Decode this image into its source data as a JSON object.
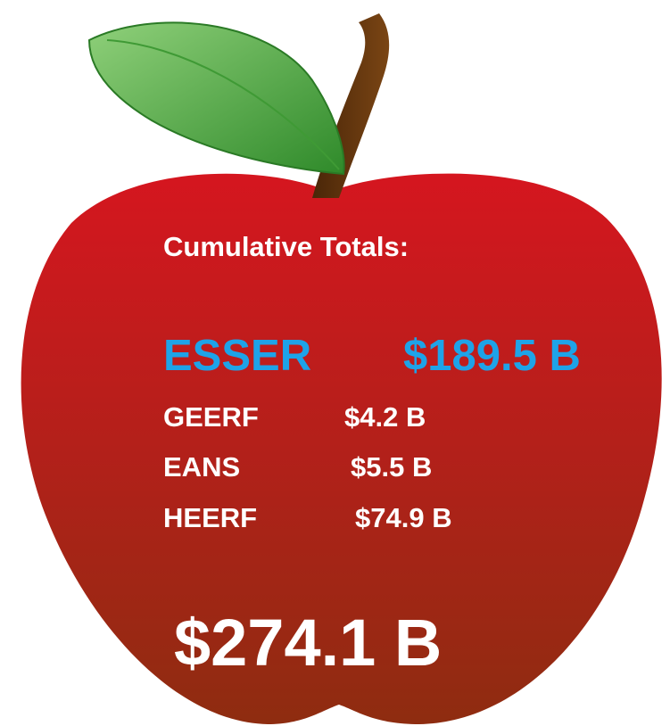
{
  "title": "Cumulative Totals:",
  "items": [
    {
      "name": "ESSER",
      "amount": "$189.5 B"
    },
    {
      "name": "GEERF",
      "amount": "$4.2 B"
    },
    {
      "name": "EANS",
      "amount": "$5.5 B"
    },
    {
      "name": "HEERF",
      "amount": "$74.9 B"
    }
  ],
  "total": "$274.1 B"
}
